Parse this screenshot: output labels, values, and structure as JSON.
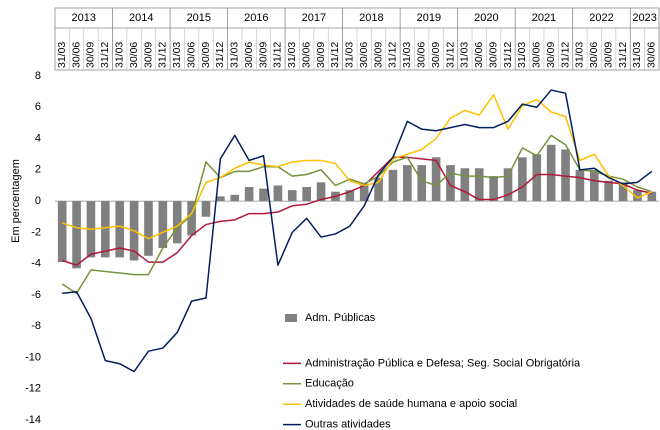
{
  "chart_data": {
    "type": "combo",
    "y_axis_label": "Em percentagem",
    "years": [
      "2013",
      "2014",
      "2015",
      "2016",
      "2017",
      "2018",
      "2019",
      "2020",
      "2021",
      "2022",
      "2023"
    ],
    "categories": [
      "31/03",
      "30/06",
      "30/09",
      "31/12",
      "31/03",
      "30/06",
      "30/09",
      "31/12",
      "31/03",
      "30/06",
      "30/09",
      "31/12",
      "31/03",
      "30/06",
      "30/09",
      "31/12",
      "31/03",
      "30/06",
      "30/09",
      "31/12",
      "31/03",
      "30/06",
      "30/09",
      "31/12",
      "31/03",
      "30/06",
      "30/09",
      "31/12",
      "31/03",
      "30/06",
      "30/09",
      "31/12",
      "31/03",
      "30/06",
      "30/09",
      "31/12",
      "31/03",
      "30/06",
      "30/09",
      "31/12",
      "31/03",
      "30/06"
    ],
    "ylim": [
      -14,
      8
    ],
    "yticks": [
      -14,
      -12,
      -10,
      -8,
      -6,
      -4,
      -2,
      0,
      2,
      4,
      6,
      8
    ],
    "legend": "bottom",
    "series": [
      {
        "name": "Adm. Públicas",
        "type": "bar",
        "color": "#808080",
        "values": [
          -3.9,
          -4.3,
          -3.6,
          -3.6,
          -3.6,
          -3.8,
          -3.5,
          -3.0,
          -2.7,
          -2.2,
          -1.0,
          0.3,
          0.4,
          0.9,
          0.8,
          1.0,
          0.7,
          0.9,
          1.2,
          0.6,
          0.7,
          1.0,
          1.5,
          2.0,
          2.3,
          2.3,
          2.8,
          2.3,
          2.1,
          2.1,
          1.6,
          2.1,
          2.8,
          3.0,
          3.6,
          3.3,
          2.0,
          2.0,
          1.3,
          1.2,
          0.7,
          0.6
        ]
      },
      {
        "name": "Administração Pública e Defesa; Seg. Social Obrigatória",
        "type": "line",
        "color": "#b0183a",
        "values": [
          -3.8,
          -4.1,
          -3.4,
          -3.2,
          -3.0,
          -3.2,
          -3.9,
          -3.9,
          -3.3,
          -2.2,
          -1.5,
          -1.3,
          -1.2,
          -0.8,
          -0.8,
          -0.7,
          -0.3,
          -0.2,
          0.1,
          0.3,
          0.6,
          1.0,
          1.9,
          2.8,
          2.8,
          2.7,
          2.6,
          1.0,
          0.6,
          0.1,
          0.1,
          0.4,
          0.9,
          1.7,
          1.7,
          1.6,
          1.5,
          1.3,
          1.2,
          1.1,
          0.7,
          0.5
        ]
      },
      {
        "name": "Educação",
        "type": "line",
        "color": "#77933c",
        "values": [
          -5.3,
          -5.9,
          -4.4,
          -4.5,
          -4.6,
          -4.7,
          -4.7,
          -3.0,
          -1.7,
          -0.9,
          2.5,
          1.5,
          1.9,
          1.9,
          2.2,
          2.2,
          1.6,
          1.7,
          2.0,
          1.0,
          1.4,
          1.1,
          1.6,
          2.5,
          2.8,
          1.3,
          1.0,
          1.8,
          1.6,
          1.6,
          1.5,
          1.6,
          3.4,
          2.9,
          4.2,
          3.6,
          2.0,
          1.9,
          1.6,
          1.4,
          0.9,
          0.6
        ]
      },
      {
        "name": "Atividades de saúde humana e apoio social",
        "type": "line",
        "color": "#ffc000",
        "values": [
          -1.4,
          -1.7,
          -1.8,
          -1.7,
          -1.6,
          -1.9,
          -2.4,
          -2.0,
          -1.6,
          -0.8,
          1.2,
          1.5,
          2.1,
          2.5,
          2.3,
          2.2,
          2.5,
          2.6,
          2.6,
          2.4,
          1.3,
          1.0,
          1.2,
          2.7,
          3.0,
          3.3,
          4.0,
          5.3,
          5.8,
          5.5,
          6.8,
          4.6,
          6.1,
          6.5,
          5.7,
          5.4,
          2.6,
          3.0,
          1.6,
          1.0,
          0.2,
          0.6
        ]
      },
      {
        "name": "Outras atividades",
        "type": "line",
        "color": "#002060",
        "values": [
          -5.9,
          -5.8,
          -7.5,
          -10.2,
          -10.4,
          -10.9,
          -9.6,
          -9.4,
          -8.4,
          -6.4,
          -6.2,
          2.7,
          4.2,
          2.6,
          2.9,
          -4.1,
          -2.0,
          -1.1,
          -2.3,
          -2.1,
          -1.6,
          -0.3,
          1.7,
          2.8,
          5.1,
          4.6,
          4.5,
          4.7,
          4.9,
          4.7,
          4.7,
          5.1,
          6.2,
          6.0,
          7.1,
          6.9,
          2.0,
          2.1,
          1.5,
          1.1,
          1.2,
          1.9
        ]
      }
    ]
  }
}
